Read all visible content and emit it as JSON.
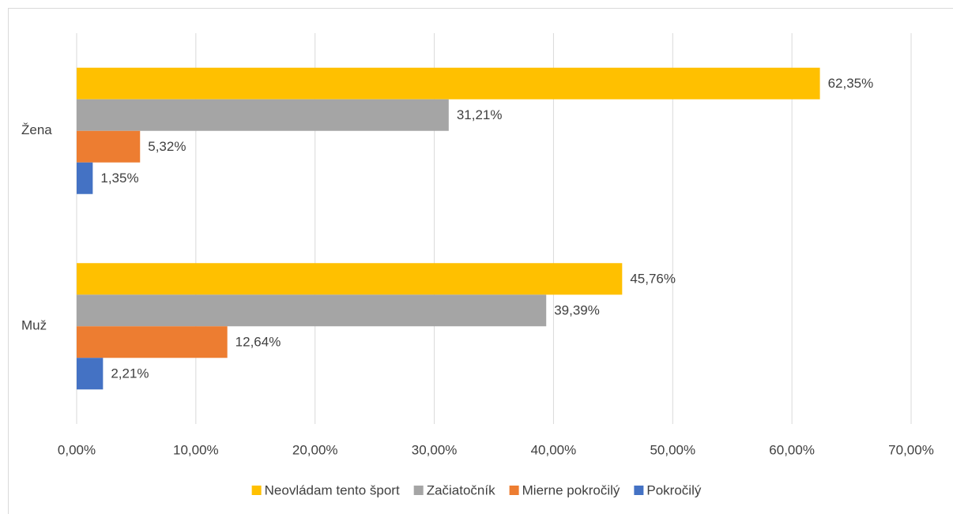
{
  "chart_data": {
    "type": "hbar",
    "categories": [
      "Žena",
      "Muž"
    ],
    "series": [
      {
        "name": "Neovládam tento šport",
        "color": "#FFC000",
        "values": [
          62.35,
          45.76
        ],
        "value_labels": [
          "62,35%",
          "45,76%"
        ]
      },
      {
        "name": "Začiatočník",
        "color": "#A5A5A5",
        "values": [
          31.21,
          39.39
        ],
        "value_labels": [
          "31,21%",
          "39,39%"
        ]
      },
      {
        "name": "Mierne pokročilý",
        "color": "#ED7D31",
        "values": [
          5.32,
          12.64
        ],
        "value_labels": [
          "5,32%",
          "12,64%"
        ]
      },
      {
        "name": "Pokročilý",
        "color": "#4472C4",
        "values": [
          1.35,
          2.21
        ],
        "value_labels": [
          "1,35%",
          "2,21%"
        ]
      }
    ],
    "xlim": [
      0,
      70
    ],
    "xticks": [
      {
        "value": 0,
        "label": "0,00%"
      },
      {
        "value": 10,
        "label": "10,00%"
      },
      {
        "value": 20,
        "label": "20,00%"
      },
      {
        "value": 30,
        "label": "30,00%"
      },
      {
        "value": 40,
        "label": "40,00%"
      },
      {
        "value": 50,
        "label": "50,00%"
      },
      {
        "value": 60,
        "label": "60,00%"
      },
      {
        "value": 70,
        "label": "70,00%"
      }
    ],
    "grid": true,
    "legend": "bottom"
  }
}
